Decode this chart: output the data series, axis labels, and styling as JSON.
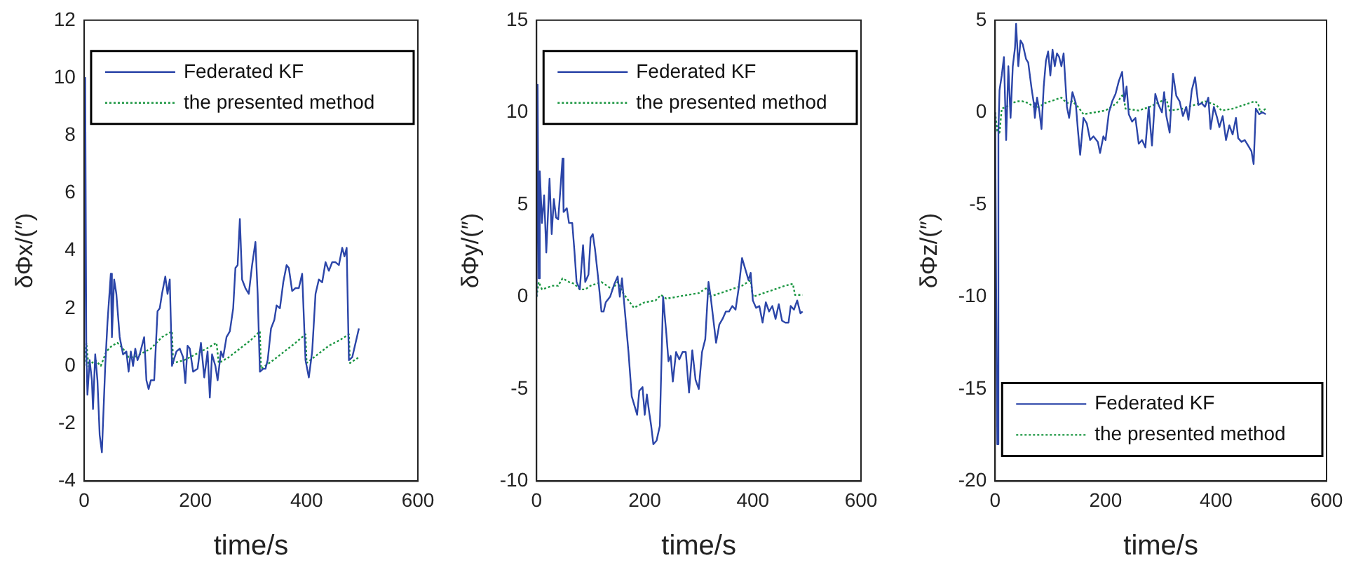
{
  "chart_data": [
    {
      "type": "line",
      "xlabel": "time/s",
      "ylabel": "δΦx/(″)",
      "xlim": [
        0,
        600
      ],
      "xticks": [
        0,
        200,
        400,
        600
      ],
      "ylim": [
        -4,
        12
      ],
      "yticks": [
        -4,
        -2,
        0,
        2,
        4,
        6,
        8,
        10,
        12
      ],
      "grid": false,
      "legend": "top",
      "series": [
        {
          "name": "Federated KF",
          "color": "#2b45a8",
          "line_style": "solid",
          "x": [
            0,
            2,
            4,
            6,
            10,
            14,
            16,
            20,
            24,
            28,
            32,
            38,
            42,
            48,
            50,
            54,
            58,
            64,
            70,
            76,
            80,
            84,
            88,
            92,
            96,
            100,
            108,
            112,
            116,
            120,
            126,
            132,
            136,
            140,
            146,
            150,
            154,
            158,
            166,
            172,
            178,
            182,
            186,
            190,
            196,
            204,
            210,
            216,
            222,
            226,
            230,
            236,
            240,
            246,
            250,
            256,
            262,
            268,
            272,
            276,
            280,
            284,
            290,
            296,
            302,
            308,
            312,
            316,
            322,
            326,
            330,
            336,
            342,
            346,
            352,
            358,
            364,
            368,
            374,
            380,
            386,
            392,
            398,
            404,
            410,
            416,
            422,
            428,
            434,
            440,
            446,
            452,
            458,
            464,
            468,
            472,
            476,
            482,
            488,
            494
          ],
          "values": [
            0,
            10,
            0.5,
            -1,
            0.2,
            -0.5,
            -1.5,
            0.4,
            -0.5,
            -2.4,
            -3,
            0,
            1.5,
            3.2,
            1,
            3,
            2.5,
            1,
            0.4,
            0.5,
            -0.2,
            0.5,
            0,
            0.6,
            0.2,
            0.4,
            1,
            -0.5,
            -0.8,
            -0.5,
            -0.5,
            1.9,
            2,
            2.5,
            3.1,
            2.5,
            3,
            0,
            0.5,
            0.6,
            0.3,
            -0.6,
            0.7,
            0.6,
            -0.2,
            -0.1,
            0.8,
            -0.4,
            0.5,
            -1.1,
            0.4,
            0,
            -0.5,
            0.5,
            0.3,
            1,
            1.2,
            2,
            3.4,
            3.5,
            5.1,
            3,
            2.7,
            2.5,
            3.5,
            4.3,
            2.5,
            -0.2,
            -0.1,
            -0.1,
            0.2,
            1.3,
            1.6,
            2.1,
            2,
            2.9,
            3.5,
            3.4,
            2.6,
            2.7,
            2.7,
            3.2,
            0.2,
            -0.4,
            0.5,
            2.5,
            3,
            2.9,
            3.6,
            3.3,
            3.6,
            3.6,
            3.5,
            4.1,
            3.8,
            4.1,
            0.2,
            0.3,
            0.8,
            1.3
          ]
        },
        {
          "name": "the presented method",
          "color": "#1a9641",
          "line_style": "dotted",
          "x": [
            0,
            4,
            8,
            20,
            30,
            40,
            50,
            60,
            70,
            80,
            90,
            100,
            120,
            140,
            158,
            160,
            180,
            200,
            220,
            238,
            242,
            260,
            280,
            300,
            316,
            318,
            340,
            360,
            380,
            398,
            400,
            420,
            440,
            460,
            476,
            478,
            494
          ],
          "values": [
            0,
            0.8,
            0,
            0.2,
            0,
            0.5,
            0.7,
            0.8,
            0.6,
            0.3,
            0.3,
            0.4,
            0.6,
            1,
            1.2,
            0.1,
            0.2,
            0.4,
            0.6,
            0.8,
            0.1,
            0.3,
            0.6,
            0.9,
            1.2,
            -0.1,
            0.2,
            0.5,
            0.8,
            1.1,
            0.1,
            0.4,
            0.7,
            0.9,
            1.1,
            0.1,
            0.3
          ]
        }
      ]
    },
    {
      "type": "line",
      "xlabel": "time/s",
      "ylabel": "δΦy/(″)",
      "xlim": [
        0,
        600
      ],
      "xticks": [
        0,
        200,
        400,
        600
      ],
      "ylim": [
        -10,
        15
      ],
      "yticks": [
        -10,
        -5,
        0,
        5,
        10,
        15
      ],
      "grid": false,
      "legend": "top",
      "series": [
        {
          "name": "Federated KF",
          "color": "#2b45a8",
          "line_style": "solid",
          "x": [
            0,
            2,
            4,
            6,
            10,
            14,
            18,
            24,
            28,
            32,
            36,
            40,
            44,
            48,
            50,
            56,
            60,
            66,
            70,
            74,
            80,
            86,
            90,
            96,
            100,
            104,
            108,
            114,
            120,
            124,
            128,
            136,
            144,
            150,
            154,
            158,
            164,
            170,
            176,
            182,
            186,
            190,
            196,
            200,
            204,
            208,
            212,
            216,
            222,
            228,
            234,
            240,
            244,
            248,
            252,
            258,
            264,
            270,
            276,
            282,
            288,
            294,
            300,
            306,
            312,
            318,
            322,
            326,
            332,
            338,
            344,
            350,
            356,
            362,
            368,
            374,
            380,
            386,
            392,
            396,
            400,
            406,
            412,
            418,
            424,
            430,
            436,
            442,
            448,
            454,
            460,
            466,
            470,
            476,
            482,
            488,
            492
          ],
          "values": [
            0,
            11.5,
            1,
            6.8,
            4,
            5.5,
            2.4,
            6.4,
            3.4,
            5.3,
            4.3,
            4.2,
            5.8,
            7.5,
            4.6,
            4.8,
            4,
            4,
            2.5,
            0.8,
            0.4,
            2.8,
            0.8,
            1.2,
            3.2,
            3.4,
            2.6,
            1,
            -0.8,
            -0.8,
            -0.3,
            0,
            0.7,
            1.1,
            0,
            1,
            -1,
            -3,
            -5.4,
            -6,
            -6.4,
            -5.1,
            -4.9,
            -6.4,
            -5.3,
            -6.2,
            -7,
            -8,
            -7.8,
            -7,
            0,
            -2,
            -3.5,
            -3.2,
            -4.6,
            -3,
            -3.4,
            -3,
            -3,
            -5.2,
            -2.9,
            -4.5,
            -5,
            -3,
            -2.3,
            0.8,
            0,
            -1,
            -2.5,
            -1.5,
            -1.2,
            -0.8,
            -0.8,
            -0.5,
            -0.7,
            0.5,
            2.1,
            1.5,
            0.9,
            1.3,
            -0.2,
            -0.6,
            -0.5,
            -1.4,
            -0.3,
            -0.8,
            -0.5,
            -1.2,
            -0.4,
            -1.3,
            -1.4,
            -1.4,
            -0.5,
            -0.7,
            -0.2,
            -0.9,
            -0.8
          ]
        },
        {
          "name": "the presented method",
          "color": "#1a9641",
          "line_style": "dotted",
          "x": [
            0,
            4,
            10,
            20,
            30,
            40,
            48,
            60,
            70,
            80,
            90,
            100,
            120,
            140,
            150,
            160,
            180,
            200,
            220,
            230,
            240,
            260,
            280,
            300,
            316,
            320,
            340,
            360,
            380,
            396,
            400,
            420,
            440,
            460,
            474,
            478,
            492
          ],
          "values": [
            0,
            0.8,
            0.4,
            0.5,
            0.6,
            0.6,
            1,
            0.8,
            0.7,
            0.4,
            0.4,
            0.6,
            0.8,
            0.4,
            0.8,
            0.2,
            -0.6,
            -0.3,
            -0.2,
            0.1,
            -0.1,
            0,
            0.1,
            0.2,
            0.5,
            0,
            0.2,
            0.4,
            0.6,
            0.9,
            0,
            0.2,
            0.4,
            0.6,
            0.7,
            0.1,
            0.1
          ]
        }
      ]
    },
    {
      "type": "line",
      "xlabel": "time/s",
      "ylabel": "δΦz/(″)",
      "xlim": [
        0,
        600
      ],
      "xticks": [
        0,
        200,
        400,
        600
      ],
      "ylim": [
        -20,
        5
      ],
      "yticks": [
        -20,
        -15,
        -10,
        -5,
        0,
        5
      ],
      "grid": false,
      "legend": "bottom",
      "series": [
        {
          "name": "Federated KF",
          "color": "#2b45a8",
          "line_style": "solid",
          "x": [
            0,
            2,
            4,
            6,
            8,
            12,
            16,
            20,
            24,
            28,
            32,
            36,
            38,
            42,
            46,
            50,
            56,
            60,
            66,
            70,
            72,
            76,
            80,
            84,
            88,
            92,
            96,
            100,
            104,
            108,
            112,
            116,
            120,
            124,
            130,
            134,
            140,
            146,
            150,
            154,
            160,
            166,
            172,
            178,
            186,
            190,
            196,
            200,
            206,
            212,
            218,
            224,
            230,
            234,
            238,
            242,
            248,
            254,
            260,
            266,
            272,
            278,
            284,
            290,
            296,
            302,
            306,
            310,
            316,
            322,
            328,
            334,
            340,
            346,
            350,
            356,
            362,
            368,
            374,
            380,
            386,
            390,
            396,
            402,
            406,
            412,
            418,
            424,
            430,
            436,
            440,
            446,
            452,
            458,
            464,
            468,
            472,
            478,
            484,
            490
          ],
          "values": [
            0,
            -10,
            -18,
            -1,
            1.2,
            2,
            3,
            -1.5,
            2.5,
            -0.3,
            2.5,
            3.5,
            4.8,
            2.5,
            3.9,
            3.7,
            2.9,
            2.7,
            1.3,
            0.5,
            -0.3,
            0.8,
            0.1,
            -0.9,
            1.4,
            2.8,
            3.3,
            2,
            3.4,
            2.5,
            3.2,
            3,
            2.5,
            3.2,
            0.3,
            -0.3,
            1.1,
            0.5,
            -1,
            -2.3,
            -0.3,
            -0.6,
            -1.5,
            -1.3,
            -1.6,
            -2.2,
            -1.3,
            -1.5,
            0,
            0.6,
            1,
            1.7,
            2.2,
            0.6,
            1.4,
            -0.1,
            -0.5,
            -0.3,
            -1.7,
            -1.5,
            -1.9,
            0.3,
            -1.8,
            1,
            0.4,
            0,
            1.1,
            -0.2,
            -1.1,
            2.1,
            0.9,
            0.6,
            -0.2,
            0.3,
            -0.4,
            1.2,
            1.9,
            0.4,
            0.5,
            0.3,
            0.8,
            -0.9,
            0.3,
            -0.3,
            -0.8,
            -0.2,
            -1.5,
            -0.7,
            -1.2,
            -0.3,
            -1.4,
            -1.6,
            -1.5,
            -1.8,
            -2.1,
            -2.8,
            0.2,
            -0.1,
            0,
            -0.1
          ]
        },
        {
          "name": "the presented method",
          "color": "#1a9641",
          "line_style": "dotted",
          "x": [
            0,
            4,
            8,
            12,
            20,
            30,
            40,
            50,
            60,
            70,
            80,
            90,
            100,
            120,
            130,
            140,
            150,
            160,
            180,
            200,
            220,
            232,
            236,
            260,
            280,
            300,
            310,
            316,
            340,
            360,
            380,
            400,
            410,
            430,
            450,
            470,
            476,
            480,
            490
          ],
          "values": [
            0,
            -1,
            -1.1,
            0.2,
            0.3,
            0.5,
            0.6,
            0.6,
            0.5,
            0.3,
            0.3,
            0.5,
            0.6,
            0.8,
            0.5,
            0.6,
            0.3,
            -0.1,
            0,
            0.1,
            0.5,
            1,
            0.2,
            0.1,
            0.3,
            0.6,
            0.7,
            0.1,
            0.2,
            0.4,
            0.6,
            0.4,
            0.1,
            0.2,
            0.4,
            0.6,
            0.5,
            0,
            0.2
          ]
        }
      ]
    }
  ]
}
